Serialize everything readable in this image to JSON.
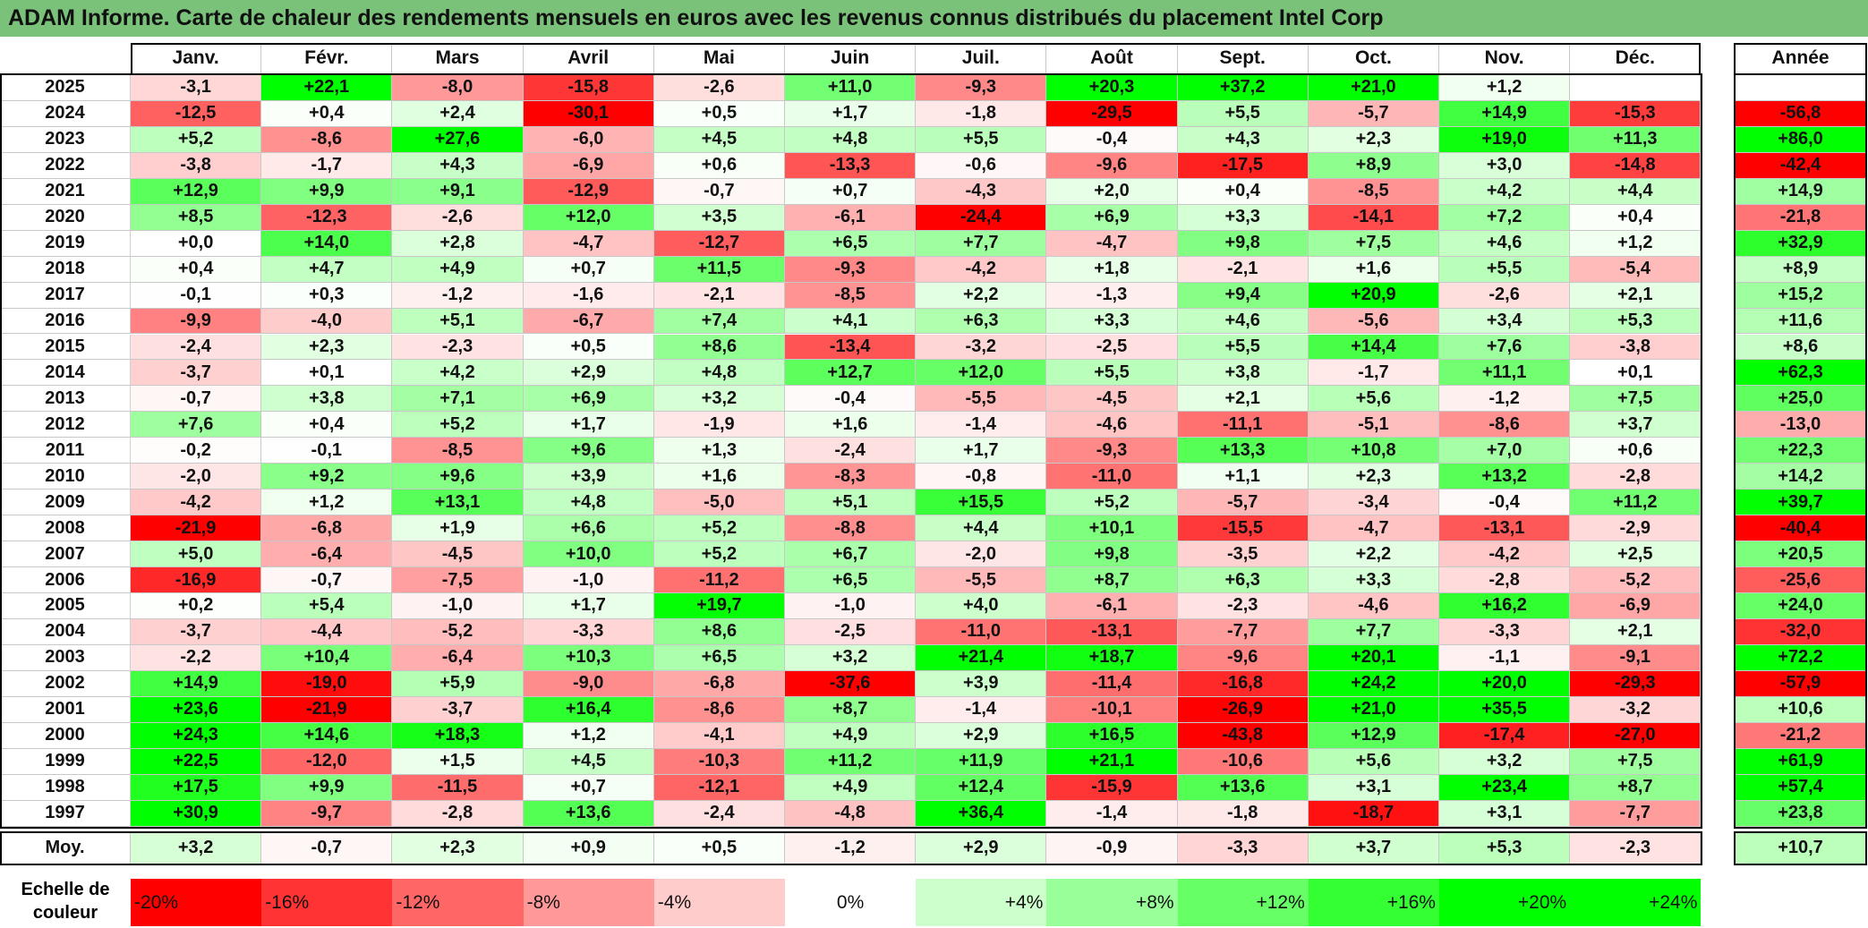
{
  "title": "ADAM Informe. Carte de chaleur des rendements mensuels en euros avec les revenus connus distribués du placement Intel Corp",
  "chart_data": {
    "type": "heatmap",
    "title": "ADAM Informe. Carte de chaleur des rendements mensuels en euros avec les revenus connus distribués du placement Intel Corp",
    "months": [
      "Janv.",
      "Févr.",
      "Mars",
      "Avril",
      "Mai",
      "Juin",
      "Juil.",
      "Août",
      "Sept.",
      "Oct.",
      "Nov.",
      "Déc."
    ],
    "annual_label": "Année",
    "average_label": "Moy.",
    "rows": [
      {
        "year": "2025",
        "values": [
          "-3,1",
          "+22,1",
          "-8,0",
          "-15,8",
          "-2,6",
          "+11,0",
          "-9,3",
          "+20,3",
          "+37,2",
          "+21,0",
          "+1,2",
          ""
        ],
        "annual": ""
      },
      {
        "year": "2024",
        "values": [
          "-12,5",
          "+0,4",
          "+2,4",
          "-30,1",
          "+0,5",
          "+1,7",
          "-1,8",
          "-29,5",
          "+5,5",
          "-5,7",
          "+14,9",
          "-15,3"
        ],
        "annual": "-56,8"
      },
      {
        "year": "2023",
        "values": [
          "+5,2",
          "-8,6",
          "+27,6",
          "-6,0",
          "+4,5",
          "+4,8",
          "+5,5",
          "-0,4",
          "+4,3",
          "+2,3",
          "+19,0",
          "+11,3"
        ],
        "annual": "+86,0"
      },
      {
        "year": "2022",
        "values": [
          "-3,8",
          "-1,7",
          "+4,3",
          "-6,9",
          "+0,6",
          "-13,3",
          "-0,6",
          "-9,6",
          "-17,5",
          "+8,9",
          "+3,0",
          "-14,8"
        ],
        "annual": "-42,4"
      },
      {
        "year": "2021",
        "values": [
          "+12,9",
          "+9,9",
          "+9,1",
          "-12,9",
          "-0,7",
          "+0,7",
          "-4,3",
          "+2,0",
          "+0,4",
          "-8,5",
          "+4,2",
          "+4,4"
        ],
        "annual": "+14,9"
      },
      {
        "year": "2020",
        "values": [
          "+8,5",
          "-12,3",
          "-2,6",
          "+12,0",
          "+3,5",
          "-6,1",
          "-24,4",
          "+6,9",
          "+3,3",
          "-14,1",
          "+7,2",
          "+0,4"
        ],
        "annual": "-21,8"
      },
      {
        "year": "2019",
        "values": [
          "+0,0",
          "+14,0",
          "+2,8",
          "-4,7",
          "-12,7",
          "+6,5",
          "+7,7",
          "-4,7",
          "+9,8",
          "+7,5",
          "+4,6",
          "+1,2"
        ],
        "annual": "+32,9"
      },
      {
        "year": "2018",
        "values": [
          "+0,4",
          "+4,7",
          "+4,9",
          "+0,7",
          "+11,5",
          "-9,3",
          "-4,2",
          "+1,8",
          "-2,1",
          "+1,6",
          "+5,5",
          "-5,4"
        ],
        "annual": "+8,9"
      },
      {
        "year": "2017",
        "values": [
          "-0,1",
          "+0,3",
          "-1,2",
          "-1,6",
          "-2,1",
          "-8,5",
          "+2,2",
          "-1,3",
          "+9,4",
          "+20,9",
          "-2,6",
          "+2,1"
        ],
        "annual": "+15,2"
      },
      {
        "year": "2016",
        "values": [
          "-9,9",
          "-4,0",
          "+5,1",
          "-6,7",
          "+7,4",
          "+4,1",
          "+6,3",
          "+3,3",
          "+4,6",
          "-5,6",
          "+3,4",
          "+5,3"
        ],
        "annual": "+11,6"
      },
      {
        "year": "2015",
        "values": [
          "-2,4",
          "+2,3",
          "-2,3",
          "+0,5",
          "+8,6",
          "-13,4",
          "-3,2",
          "-2,5",
          "+5,5",
          "+14,4",
          "+7,6",
          "-3,8"
        ],
        "annual": "+8,6"
      },
      {
        "year": "2014",
        "values": [
          "-3,7",
          "+0,1",
          "+4,2",
          "+2,9",
          "+4,8",
          "+12,7",
          "+12,0",
          "+5,5",
          "+3,8",
          "-1,7",
          "+11,1",
          "+0,1"
        ],
        "annual": "+62,3"
      },
      {
        "year": "2013",
        "values": [
          "-0,7",
          "+3,8",
          "+7,1",
          "+6,9",
          "+3,2",
          "-0,4",
          "-5,5",
          "-4,5",
          "+2,1",
          "+5,6",
          "-1,2",
          "+7,5"
        ],
        "annual": "+25,0"
      },
      {
        "year": "2012",
        "values": [
          "+7,6",
          "+0,4",
          "+5,2",
          "+1,7",
          "-1,9",
          "+1,6",
          "-1,4",
          "-4,6",
          "-11,1",
          "-5,1",
          "-8,6",
          "+3,7"
        ],
        "annual": "-13,0"
      },
      {
        "year": "2011",
        "values": [
          "-0,2",
          "-0,1",
          "-8,5",
          "+9,6",
          "+1,3",
          "-2,4",
          "+1,7",
          "-9,3",
          "+13,3",
          "+10,8",
          "+7,0",
          "+0,6"
        ],
        "annual": "+22,3"
      },
      {
        "year": "2010",
        "values": [
          "-2,0",
          "+9,2",
          "+9,6",
          "+3,9",
          "+1,6",
          "-8,3",
          "-0,8",
          "-11,0",
          "+1,1",
          "+2,3",
          "+13,2",
          "-2,8"
        ],
        "annual": "+14,2"
      },
      {
        "year": "2009",
        "values": [
          "-4,2",
          "+1,2",
          "+13,1",
          "+4,8",
          "-5,0",
          "+5,1",
          "+15,5",
          "+5,2",
          "-5,7",
          "-3,4",
          "-0,4",
          "+11,2"
        ],
        "annual": "+39,7"
      },
      {
        "year": "2008",
        "values": [
          "-21,9",
          "-6,8",
          "+1,9",
          "+6,6",
          "+5,2",
          "-8,8",
          "+4,4",
          "+10,1",
          "-15,5",
          "-4,7",
          "-13,1",
          "-2,9"
        ],
        "annual": "-40,4"
      },
      {
        "year": "2007",
        "values": [
          "+5,0",
          "-6,4",
          "-4,5",
          "+10,0",
          "+5,2",
          "+6,7",
          "-2,0",
          "+9,8",
          "-3,5",
          "+2,2",
          "-4,2",
          "+2,5"
        ],
        "annual": "+20,5"
      },
      {
        "year": "2006",
        "values": [
          "-16,9",
          "-0,7",
          "-7,5",
          "-1,0",
          "-11,2",
          "+6,5",
          "-5,5",
          "+8,7",
          "+6,3",
          "+3,3",
          "-2,8",
          "-5,2"
        ],
        "annual": "-25,6"
      },
      {
        "year": "2005",
        "values": [
          "+0,2",
          "+5,4",
          "-1,0",
          "+1,7",
          "+19,7",
          "-1,0",
          "+4,0",
          "-6,1",
          "-2,3",
          "-4,6",
          "+16,2",
          "-6,9"
        ],
        "annual": "+24,0"
      },
      {
        "year": "2004",
        "values": [
          "-3,7",
          "-4,4",
          "-5,2",
          "-3,3",
          "+8,6",
          "-2,5",
          "-11,0",
          "-13,1",
          "-7,7",
          "+7,7",
          "-3,3",
          "+2,1"
        ],
        "annual": "-32,0"
      },
      {
        "year": "2003",
        "values": [
          "-2,2",
          "+10,4",
          "-6,4",
          "+10,3",
          "+6,5",
          "+3,2",
          "+21,4",
          "+18,7",
          "-9,6",
          "+20,1",
          "-1,1",
          "-9,1"
        ],
        "annual": "+72,2"
      },
      {
        "year": "2002",
        "values": [
          "+14,9",
          "-19,0",
          "+5,9",
          "-9,0",
          "-6,8",
          "-37,6",
          "+3,9",
          "-11,4",
          "-16,8",
          "+24,2",
          "+20,0",
          "-29,3"
        ],
        "annual": "-57,9"
      },
      {
        "year": "2001",
        "values": [
          "+23,6",
          "-21,9",
          "-3,7",
          "+16,4",
          "-8,6",
          "+8,7",
          "-1,4",
          "-10,1",
          "-26,9",
          "+21,0",
          "+35,5",
          "-3,2"
        ],
        "annual": "+10,6"
      },
      {
        "year": "2000",
        "values": [
          "+24,3",
          "+14,6",
          "+18,3",
          "+1,2",
          "-4,1",
          "+4,9",
          "+2,9",
          "+16,5",
          "-43,8",
          "+12,9",
          "-17,4",
          "-27,0"
        ],
        "annual": "-21,2"
      },
      {
        "year": "1999",
        "values": [
          "+22,5",
          "-12,0",
          "+1,5",
          "+4,5",
          "-10,3",
          "+11,2",
          "+11,9",
          "+21,1",
          "-10,6",
          "+5,6",
          "+3,2",
          "+7,5"
        ],
        "annual": "+61,9"
      },
      {
        "year": "1998",
        "values": [
          "+17,5",
          "+9,9",
          "-11,5",
          "+0,7",
          "-12,1",
          "+4,9",
          "+12,4",
          "-15,9",
          "+13,6",
          "+3,1",
          "+23,4",
          "+8,7"
        ],
        "annual": "+57,4"
      },
      {
        "year": "1997",
        "values": [
          "+30,9",
          "-9,7",
          "-2,8",
          "+13,6",
          "-2,4",
          "-4,8",
          "+36,4",
          "-1,4",
          "-1,8",
          "-18,7",
          "+3,1",
          "-7,7"
        ],
        "annual": "+23,8"
      }
    ],
    "averages": [
      "+3,2",
      "-0,7",
      "+2,3",
      "+0,9",
      "+0,5",
      "-1,2",
      "+2,9",
      "-0,9",
      "-3,3",
      "+3,7",
      "+5,3",
      "-2,3"
    ],
    "average_annual": "+10,7",
    "color_scale": {
      "title_lines": [
        "Echelle de",
        "couleur"
      ],
      "stops": [
        {
          "label": "-20%",
          "value": -20,
          "color": "#ff0000"
        },
        {
          "label": "-16%",
          "value": -16,
          "color": "#ff3333"
        },
        {
          "label": "-12%",
          "value": -12,
          "color": "#ff6666"
        },
        {
          "label": "-8%",
          "value": -8,
          "color": "#ff9999"
        },
        {
          "label": "-4%",
          "value": -4,
          "color": "#ffcccc"
        },
        {
          "label": "0%",
          "value": 0,
          "color": "#ffffff"
        },
        {
          "label": "+4%",
          "value": 4,
          "color": "#ccffcc"
        },
        {
          "label": "+8%",
          "value": 8,
          "color": "#99ff99"
        },
        {
          "label": "+12%",
          "value": 12,
          "color": "#66ff66"
        },
        {
          "label": "+16%",
          "value": 16,
          "color": "#33ff33"
        },
        {
          "label": "+20%",
          "value": 20,
          "color": "#00ff00"
        },
        {
          "label": "+24%",
          "value": 24,
          "color": "#00ff00"
        }
      ]
    }
  }
}
